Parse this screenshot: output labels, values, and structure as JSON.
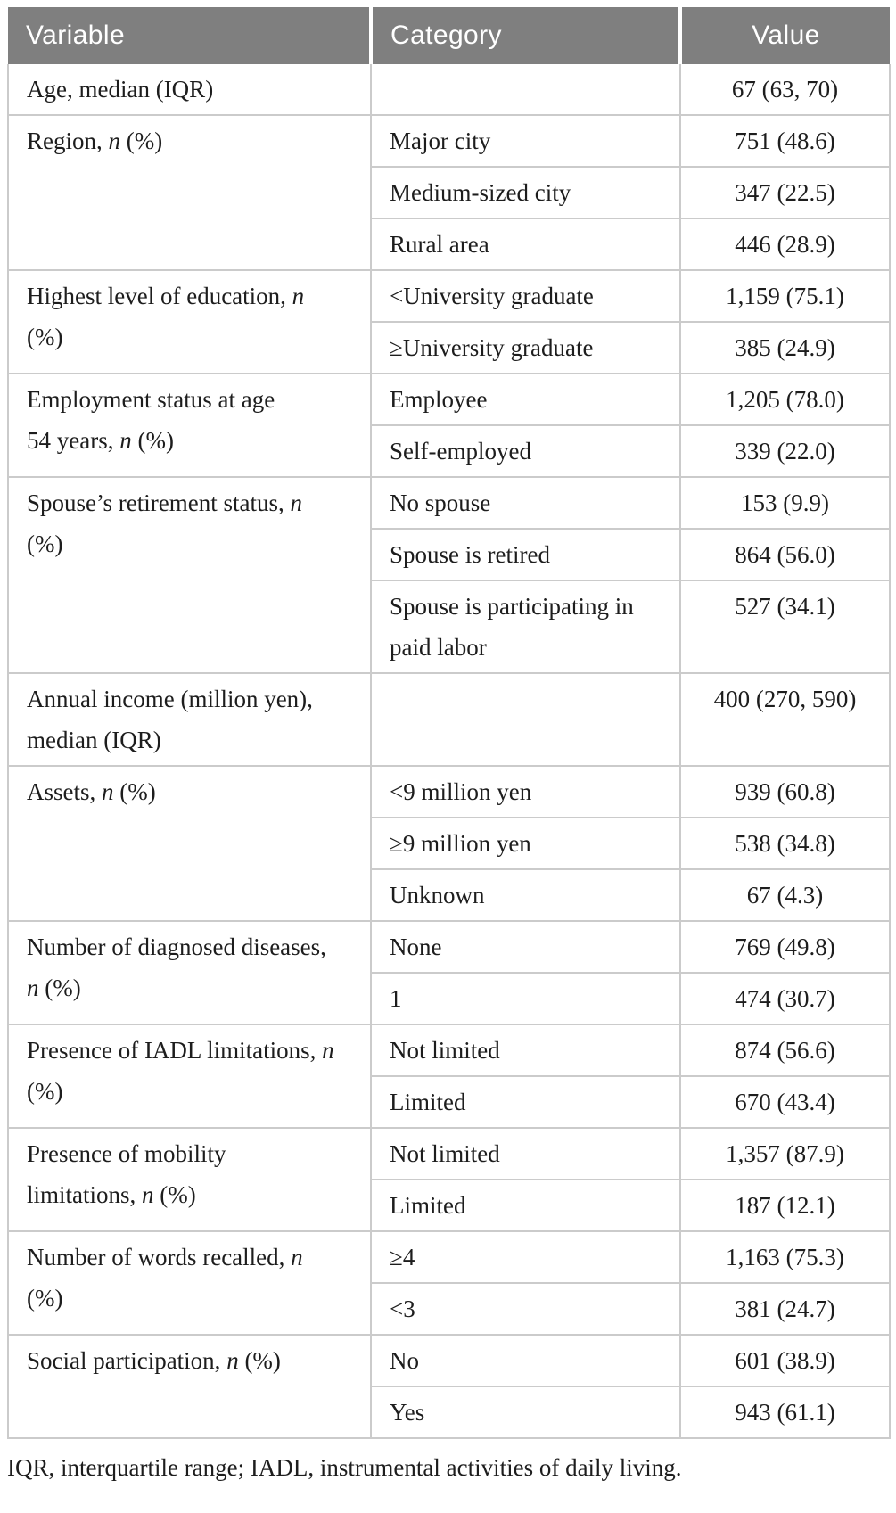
{
  "colors": {
    "header_bg": "#7f7f7f",
    "header_text": "#ffffff",
    "border": "#cbcbcb",
    "body_text": "#1d1d1d"
  },
  "table": {
    "columns": [
      {
        "label": "Variable"
      },
      {
        "label": "Category"
      },
      {
        "label": "Value"
      }
    ],
    "groups": [
      {
        "variable": "Age, median (IQR)",
        "rows": [
          {
            "category": "",
            "value": "67 (63, 70)"
          }
        ]
      },
      {
        "variable": "Region, n (%)",
        "rows": [
          {
            "category": "Major city",
            "value": "751 (48.6)"
          },
          {
            "category": "Medium-sized city",
            "value": "347 (22.5)"
          },
          {
            "category": "Rural area",
            "value": "446 (28.9)"
          }
        ]
      },
      {
        "variable": "Highest level of education, n\n(%)",
        "rows": [
          {
            "category": "<University graduate",
            "value": "1,159 (75.1)"
          },
          {
            "category": "≥University graduate",
            "value": "385 (24.9)"
          }
        ]
      },
      {
        "variable": "Employment status at age\n54 years, n (%)",
        "rows": [
          {
            "category": "Employee",
            "value": "1,205 (78.0)"
          },
          {
            "category": "Self-employed",
            "value": "339 (22.0)"
          }
        ]
      },
      {
        "variable": "Spouse’s retirement status, n\n(%)",
        "rows": [
          {
            "category": "No spouse",
            "value": "153 (9.9)"
          },
          {
            "category": "Spouse is retired",
            "value": "864 (56.0)"
          },
          {
            "category": "Spouse is participating in\npaid labor",
            "value": "527 (34.1)"
          }
        ]
      },
      {
        "variable": "Annual income (million yen),\nmedian (IQR)",
        "rows": [
          {
            "category": "",
            "value": "400 (270, 590)"
          }
        ]
      },
      {
        "variable": "Assets, n (%)",
        "rows": [
          {
            "category": "<9 million yen",
            "value": "939 (60.8)"
          },
          {
            "category": "≥9 million yen",
            "value": "538 (34.8)"
          },
          {
            "category": "Unknown",
            "value": "67 (4.3)"
          }
        ]
      },
      {
        "variable": "Number of diagnosed diseases,\nn (%)",
        "rows": [
          {
            "category": "None",
            "value": "769 (49.8)"
          },
          {
            "category": "1",
            "value": "474 (30.7)"
          }
        ]
      },
      {
        "variable": "Presence of IADL limitations, n\n(%)",
        "rows": [
          {
            "category": "Not limited",
            "value": "874 (56.6)"
          },
          {
            "category": "Limited",
            "value": "670 (43.4)"
          }
        ]
      },
      {
        "variable": "Presence of mobility\nlimitations, n (%)",
        "rows": [
          {
            "category": "Not limited",
            "value": "1,357 (87.9)"
          },
          {
            "category": "Limited",
            "value": "187 (12.1)"
          }
        ]
      },
      {
        "variable": "Number of words recalled, n\n(%)",
        "rows": [
          {
            "category": "≥4",
            "value": "1,163 (75.3)"
          },
          {
            "category": "<3",
            "value": "381 (24.7)"
          }
        ]
      },
      {
        "variable": "Social participation, n (%)",
        "rows": [
          {
            "category": "No",
            "value": "601 (38.9)"
          },
          {
            "category": "Yes",
            "value": "943 (61.1)"
          }
        ]
      }
    ],
    "footnote": "IQR, interquartile range; IADL, instrumental activities of daily living."
  }
}
